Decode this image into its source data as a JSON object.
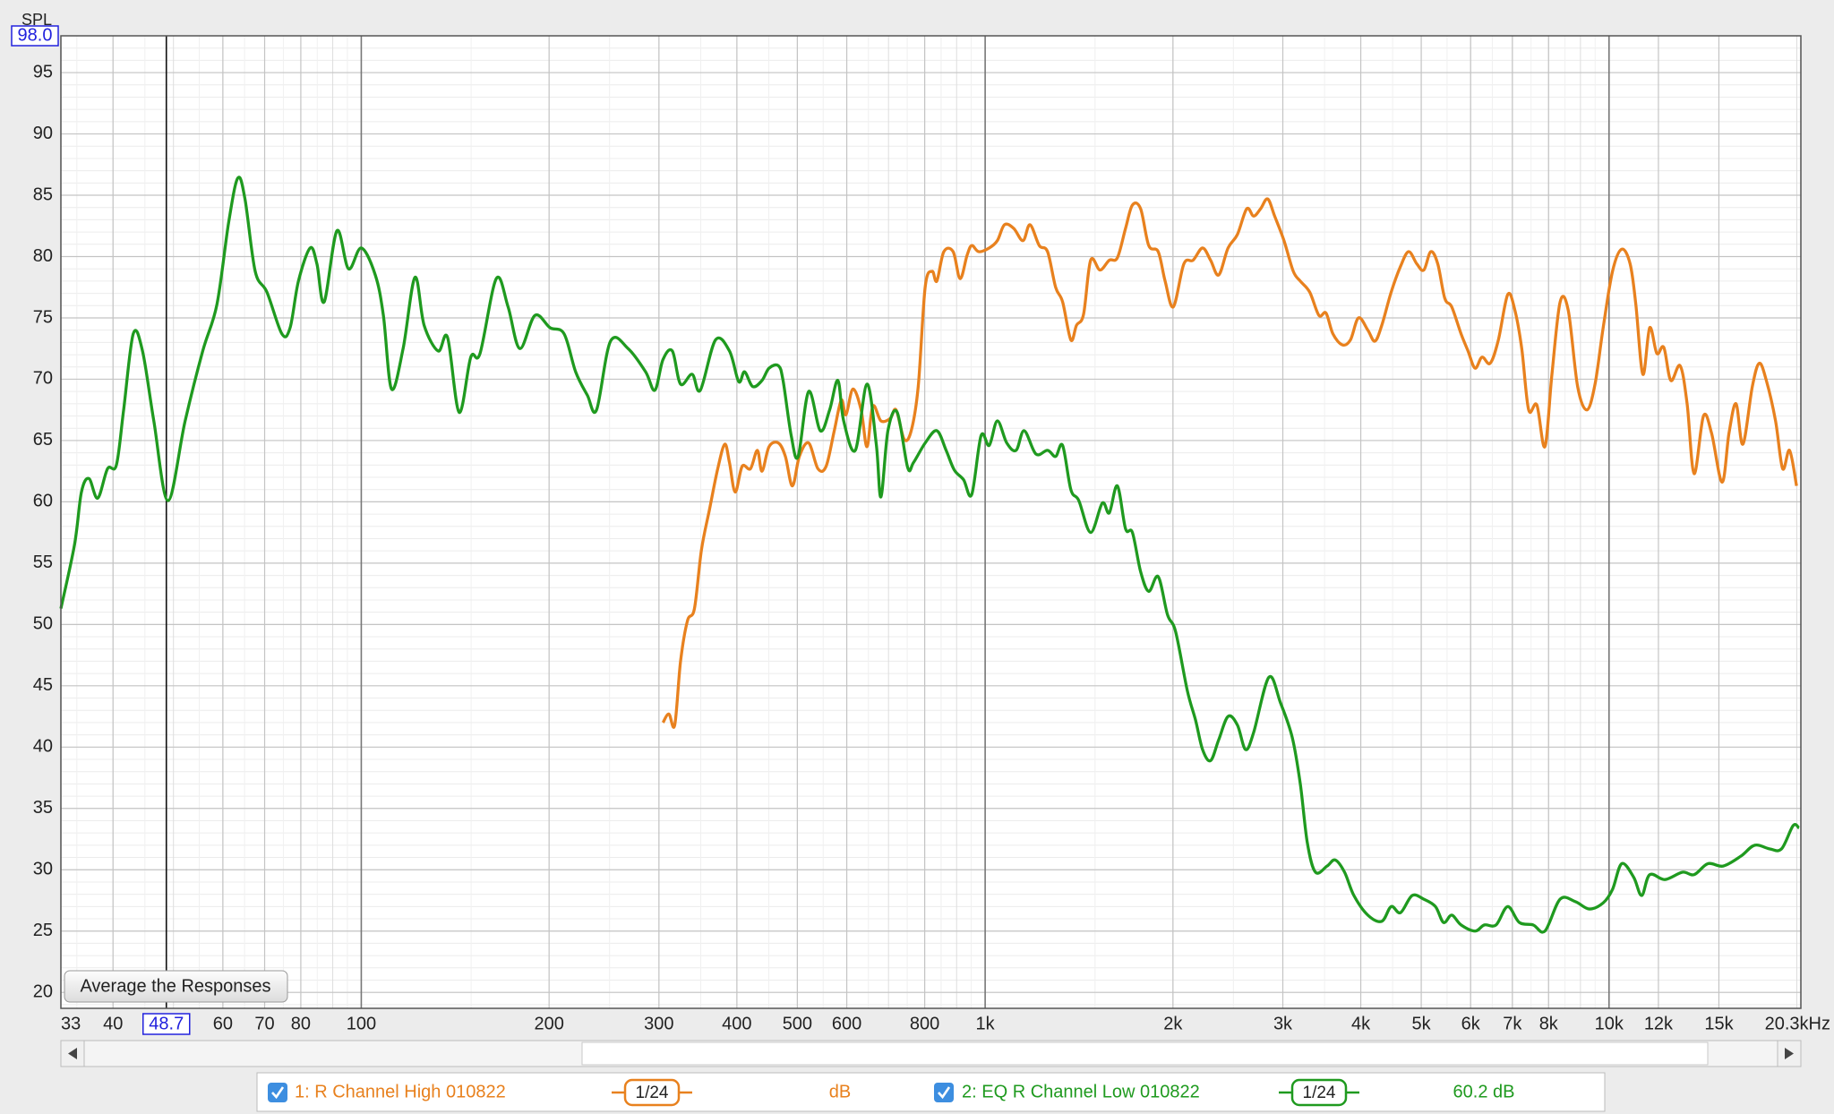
{
  "chart_data": {
    "type": "line",
    "y_label": "SPL",
    "xscale": "log",
    "xlim": [
      33,
      20300
    ],
    "ylim": [
      18.7,
      98
    ],
    "xticks": [
      33,
      40,
      60,
      70,
      80,
      100,
      200,
      300,
      400,
      500,
      600,
      800,
      {
        "value": 1000,
        "label": "1k"
      },
      {
        "value": 2000,
        "label": "2k"
      },
      {
        "value": 3000,
        "label": "3k"
      },
      {
        "value": 4000,
        "label": "4k"
      },
      {
        "value": 5000,
        "label": "5k"
      },
      {
        "value": 6000,
        "label": "6k"
      },
      {
        "value": 7000,
        "label": "7k"
      },
      {
        "value": 8000,
        "label": "8k"
      },
      {
        "value": 10000,
        "label": "10k"
      },
      {
        "value": 12000,
        "label": "12k"
      },
      {
        "value": 15000,
        "label": "15k"
      },
      {
        "value": 20300,
        "label": "20.3kHz"
      }
    ],
    "yticks": [
      20,
      25,
      30,
      35,
      40,
      45,
      50,
      55,
      60,
      65,
      70,
      75,
      80,
      85,
      90,
      95
    ],
    "grid": true,
    "cursor": {
      "x": 48.7,
      "y": {
        "value": 98,
        "label": "98.0"
      }
    },
    "button": "Average the Responses",
    "series": [
      {
        "name": "1: R Channel High 010822",
        "color": "#e8811e",
        "smoothing": "1/24",
        "readout": "dB",
        "x": [
          304.5,
          311.2,
          318.0,
          324.9,
          333.3,
          342.0,
          351.0,
          361.6,
          372.7,
          382.5,
          389.2,
          397.5,
          407.9,
          420.5,
          431.4,
          438.9,
          450.4,
          466.2,
          478.4,
          490.9,
          503.7,
          521.3,
          539.5,
          556.0,
          573.0,
          588.1,
          598.3,
          613.8,
          632.6,
          646.5,
          660.5,
          680.7,
          704.5,
          719.8,
          741.8,
          761.2,
          781.1,
          801.4,
          822.2,
          836.6,
          858.5,
          888.5,
          911.7,
          935.4,
          951.7,
          976.5,
          1015,
          1046,
          1074,
          1111,
          1150,
          1180,
          1221,
          1259,
          1297,
          1331,
          1372,
          1401,
          1438,
          1476,
          1528,
          1581,
          1629,
          1679,
          1722,
          1775,
          1829,
          1894,
          1943,
          2003,
          2082,
          2154,
          2231,
          2298,
          2368,
          2451,
          2537,
          2626,
          2694,
          2764,
          2837,
          2911,
          3013,
          3118,
          3200,
          3313,
          3428,
          3518,
          3609,
          3736,
          3850,
          3967,
          4106,
          4214,
          4323,
          4475,
          4632,
          4773,
          4920,
          5048,
          5180,
          5315,
          5454,
          5596,
          5792,
          5943,
          6099,
          6258,
          6450,
          6647,
          6880,
          7059,
          7246,
          7433,
          7661,
          7893,
          8100,
          8349,
          8604,
          8906,
          9216,
          9497,
          9786,
          10130,
          10480,
          10810,
          11040,
          11330,
          11620,
          11930,
          12240,
          12560,
          13000,
          13340,
          13690,
          14170,
          14600,
          15180,
          15570,
          15980,
          16390,
          16970,
          17410,
          17870,
          18490,
          18980,
          19470,
          19980
        ],
        "values": [
          42,
          42.7,
          41.8,
          47,
          50.3,
          51.3,
          56.1,
          59.4,
          62.7,
          64.7,
          63.2,
          60.8,
          62.9,
          62.7,
          64.2,
          62.5,
          64.5,
          64.8,
          63.7,
          61.3,
          63.7,
          64.8,
          62.7,
          62.9,
          65.8,
          68.3,
          67.1,
          69.2,
          67.5,
          64.5,
          67.8,
          66.6,
          66.8,
          67.5,
          65.1,
          65.8,
          69.4,
          77.5,
          78.8,
          78,
          80.4,
          80.4,
          78.2,
          80.1,
          80.9,
          80.4,
          80.7,
          81.3,
          82.6,
          82.3,
          81.3,
          82.6,
          80.9,
          80.4,
          77.5,
          76.3,
          73.2,
          74.4,
          75.3,
          79.7,
          78.9,
          79.7,
          79.9,
          82.3,
          84.2,
          83.9,
          80.9,
          80.4,
          78,
          75.9,
          79.4,
          79.7,
          80.7,
          79.7,
          78.5,
          80.7,
          81.8,
          83.9,
          83.3,
          83.9,
          84.7,
          83.3,
          81.3,
          78.8,
          78,
          77.1,
          75.2,
          75.4,
          73.7,
          72.8,
          73.2,
          75,
          74,
          73.1,
          74.4,
          77.1,
          79.2,
          80.4,
          79.4,
          78.9,
          80.4,
          79.4,
          76.6,
          75.9,
          73.7,
          72.3,
          70.9,
          71.8,
          71.3,
          73.2,
          76.9,
          75.7,
          72.5,
          67.5,
          67.9,
          64.5,
          70.4,
          76.3,
          75.6,
          69.4,
          67.5,
          69.6,
          74.2,
          78.8,
          80.6,
          79.4,
          76.1,
          70.4,
          74.2,
          72.1,
          72.6,
          69.9,
          71.1,
          68,
          62.3,
          67,
          65.6,
          61.6,
          65.6,
          68,
          64.7,
          69.4,
          71.3,
          69.9,
          66.6,
          62.7,
          64.2,
          61.3
        ]
      },
      {
        "name": "2: EQ R Channel Low 010822",
        "color": "#1f9a1f",
        "smoothing": "1/24",
        "readout": "60.2 dB",
        "x": [
          33,
          34.7,
          35.6,
          36.6,
          37.8,
          39.2,
          40.5,
          41.6,
          43.1,
          44.6,
          46.5,
          49.0,
          52.2,
          55.7,
          58.7,
          61.3,
          63.4,
          65.1,
          67.6,
          70.6,
          74.6,
          76.9,
          79.3,
          82.8,
          84.9,
          87.2,
          91.4,
          95.4,
          100,
          105.3,
          108.5,
          111.8,
          116.7,
          121.9,
          126.1,
          132.8,
          137.5,
          143.5,
          149.8,
          155.0,
          164.6,
          171.9,
          179.5,
          189.8,
          200.7,
          211.4,
          220.6,
          230.3,
          238.3,
          250.9,
          267.7,
          285.6,
          295.5,
          304.5,
          315.2,
          324.9,
          339.1,
          349.5,
          369.6,
          389.2,
          402.7,
          411.5,
          424.1,
          438.9,
          450.4,
          466.2,
          474.3,
          488.8,
          501.5,
          521.3,
          544.2,
          563.3,
          580.6,
          593.2,
          619.3,
          646.5,
          669.1,
          680.7,
          698.5,
          722.8,
          751.3,
          767.6,
          801.4,
          836.6,
          865.8,
          892.3,
          923.5,
          951.7,
          985.1,
          1015,
          1046,
          1083,
          1121,
          1155,
          1206,
          1259,
          1297,
          1331,
          1372,
          1413,
          1476,
          1541,
          1581,
          1629,
          1679,
          1722,
          1775,
          1829,
          1894,
          1960,
          2020,
          2109,
          2174,
          2231,
          2298,
          2368,
          2451,
          2537,
          2615,
          2694,
          2850,
          2975,
          3106,
          3200,
          3284,
          3384,
          3532,
          3640,
          3768,
          3900,
          4106,
          4323,
          4475,
          4632,
          4835,
          5048,
          5269,
          5430,
          5596,
          5792,
          6099,
          6312,
          6590,
          6880,
          7182,
          7559,
          7893,
          8349,
          8829,
          9295,
          9786,
          10130,
          10480,
          10950,
          11280,
          11620,
          12290,
          13110,
          13690,
          14410,
          15240,
          16260,
          17120,
          18100,
          18900,
          19730,
          20160
        ],
        "values": [
          51.3,
          56.5,
          60.8,
          61.9,
          60.3,
          62.7,
          63,
          67.5,
          73.7,
          72.3,
          66.6,
          60.1,
          66.6,
          72.3,
          76.1,
          82.8,
          86.4,
          84.7,
          78.8,
          77.1,
          73.7,
          74.2,
          78,
          80.7,
          79.4,
          76.3,
          82.1,
          79,
          80.7,
          78.5,
          75.2,
          69.2,
          72.5,
          78.3,
          74.4,
          72.3,
          73.4,
          67.3,
          71.8,
          72.1,
          78.2,
          75.9,
          72.5,
          75.2,
          74.2,
          73.7,
          70.6,
          68.7,
          67.5,
          73.1,
          72.5,
          70.6,
          69.1,
          71.6,
          72.3,
          69.6,
          70.4,
          69.1,
          73.2,
          72.3,
          69.8,
          70.6,
          69.4,
          69.9,
          70.9,
          71.1,
          69.9,
          65.4,
          63.7,
          69.0,
          65.8,
          67.5,
          69.9,
          66.6,
          64.2,
          69.6,
          64.7,
          60.4,
          65.8,
          67.3,
          62.8,
          63.2,
          64.8,
          65.8,
          64.2,
          62.6,
          61.8,
          60.6,
          65.4,
          64.6,
          66.6,
          64.8,
          64.2,
          65.8,
          63.9,
          64.2,
          63.7,
          64.6,
          61,
          60.1,
          57.5,
          59.9,
          59.1,
          61.3,
          57.8,
          57.5,
          54.3,
          52.7,
          53.9,
          50.8,
          49.4,
          44.6,
          42.2,
          39.8,
          38.9,
          40.6,
          42.5,
          41.8,
          39.8,
          41.2,
          45.7,
          43.6,
          40.8,
          37,
          32.2,
          29.8,
          30.3,
          30.8,
          29.8,
          27.9,
          26.3,
          25.8,
          27,
          26.5,
          27.9,
          27.6,
          27,
          25.7,
          26.3,
          25.5,
          25,
          25.5,
          25.5,
          27,
          25.7,
          25.5,
          25,
          27.6,
          27.4,
          26.8,
          27.3,
          28.4,
          30.5,
          29.4,
          27.9,
          29.6,
          29.2,
          29.8,
          29.6,
          30.5,
          30.3,
          31.1,
          32,
          31.7,
          31.7,
          33.6,
          33.4
        ]
      }
    ]
  }
}
